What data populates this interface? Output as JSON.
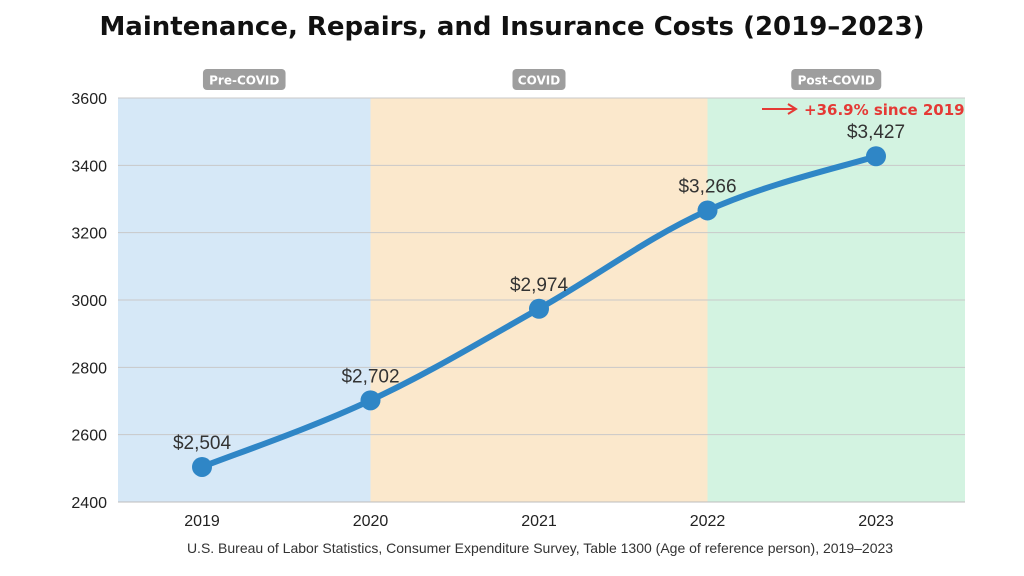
{
  "chart_data": {
    "type": "line",
    "title": "Maintenance, Repairs, and Insurance Costs (2019–2023)",
    "source": "U.S. Bureau of Labor Statistics, Consumer Expenditure Survey, Table 1300 (Age of reference person), 2019–2023",
    "x": [
      "2019",
      "2020",
      "2021",
      "2022",
      "2023"
    ],
    "series": [
      {
        "values": [
          2504,
          2702,
          2974,
          3266,
          3427
        ],
        "labels": [
          "$2,504",
          "$2,702",
          "$2,974",
          "$3,266",
          "$3,427"
        ]
      }
    ],
    "ylim": [
      2400,
      3600
    ],
    "yticks": [
      2400,
      2600,
      2800,
      3000,
      3200,
      3400,
      3600
    ],
    "grid": true,
    "periods": [
      {
        "label": "Pre-COVID",
        "from": "2019",
        "to": "2020",
        "color": "#d6e8f7"
      },
      {
        "label": "COVID",
        "from": "2020",
        "to": "2022",
        "color": "#fbe8cc"
      },
      {
        "label": "Post-COVID",
        "from": "2022",
        "to": "2023",
        "color": "#d3f3e1"
      }
    ],
    "annotation": {
      "text": "+36.9% since 2019",
      "color": "#e53935"
    },
    "colors": {
      "line": "#2f86c6",
      "period_badge": "#9e9e9e"
    }
  }
}
